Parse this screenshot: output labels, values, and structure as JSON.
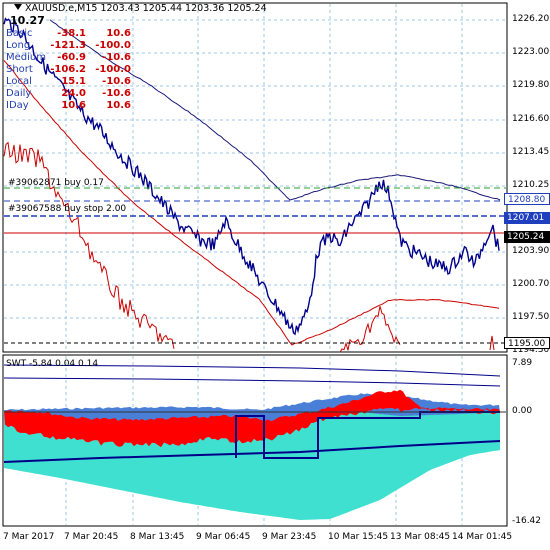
{
  "header": {
    "symbol_info": "XAUUSD.e,M15  1203.43 1205.44 1203.36 1205.24",
    "big_value": "10.27"
  },
  "stats": [
    {
      "label": "Basic",
      "v1": "-38.1",
      "v2": "10.6"
    },
    {
      "label": "Long",
      "v1": "-121.3",
      "v2": "-100.0"
    },
    {
      "label": "Medium",
      "v1": "-60.9",
      "v2": "-10.6"
    },
    {
      "label": "Short",
      "v1": "-106.2",
      "v2": "-100.0"
    },
    {
      "label": "Local",
      "v1": "15.1",
      "v2": "-10.6"
    },
    {
      "label": "Daily",
      "v1": "24.0",
      "v2": "-10.6"
    },
    {
      "label": "IDay",
      "v1": "10.6",
      "v2": "10.6"
    }
  ],
  "orders": [
    {
      "label": "#39062871 buy 0.17"
    },
    {
      "label": "#39067588 buy stop 2.00"
    }
  ],
  "price_axis": [
    "1226.20",
    "1223.00",
    "1219.80",
    "1216.60",
    "1213.45",
    "1210.25",
    "1203.90",
    "1200.70",
    "1197.50",
    "1194.30"
  ],
  "price_tags": {
    "buy_level": "1208.80",
    "stop_level": "1207.01",
    "current": "1205.24",
    "low_level": "1195.00"
  },
  "indicator": {
    "label": "SWT -5.84 0.04 0.14",
    "axis": [
      "7.89",
      "0.00",
      "-16.42"
    ]
  },
  "time_axis": [
    "7 Mar 2017",
    "7 Mar 20:45",
    "8 Mar 13:45",
    "9 Mar 06:45",
    "9 Mar 23:45",
    "10 Mar 15:45",
    "13 Mar 08:45",
    "14 Mar 01:45"
  ],
  "colors": {
    "price_line": "#00008b",
    "ma_line": "#cc0000",
    "grid": "#9ec9e6",
    "buy_line": "#2ca02c",
    "stop_line": "#1f3fbf",
    "current_line": "#cc0000",
    "swt_fill_cyan": "#40e0d0",
    "swt_fill_red": "#ff0000",
    "swt_fill_blue": "#4a7fd8"
  }
}
